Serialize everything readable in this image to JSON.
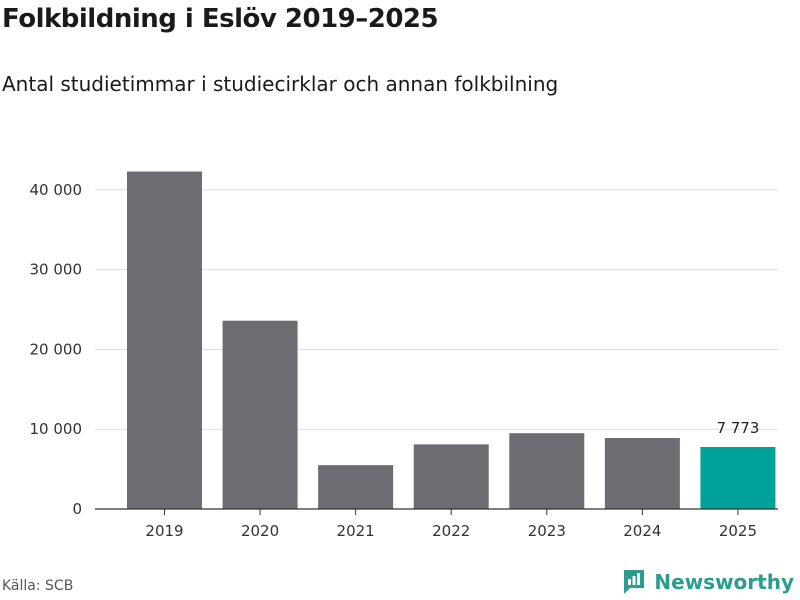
{
  "header": {
    "title": "Folkbildning i Eslöv 2019–2025",
    "subtitle": "Antal studietimmar i studiecirklar och annan folkbilning"
  },
  "footer": {
    "source": "Källa: SCB",
    "brand": "Newsworthy"
  },
  "colors": {
    "bar": "#6d6c72",
    "highlight": "#00a29a",
    "grid": "#dddddd",
    "brand": "#2a9d8f"
  },
  "chart_data": {
    "type": "bar",
    "categories": [
      "2019",
      "2020",
      "2021",
      "2022",
      "2023",
      "2024",
      "2025"
    ],
    "values": [
      42300,
      23600,
      5500,
      8100,
      9500,
      8900,
      7773
    ],
    "highlight_index": 6,
    "data_labels": [
      {
        "index": 6,
        "text": "7 773"
      }
    ],
    "y_ticks": [
      0,
      10000,
      20000,
      30000,
      40000
    ],
    "y_tick_labels": [
      "0",
      "10 000",
      "20 000",
      "30 000",
      "40 000"
    ],
    "ylim": [
      0,
      45000
    ],
    "grid": true
  }
}
